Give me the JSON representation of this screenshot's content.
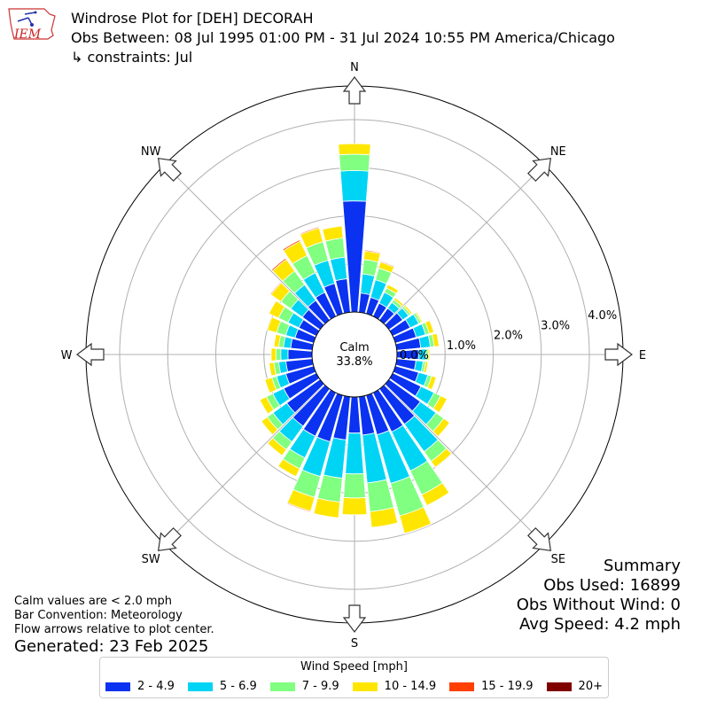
{
  "header": {
    "title": "Windrose Plot for [DEH] DECORAH",
    "subtitle": "Obs Between: 08 Jul 1995 01:00 PM - 31 Jul 2024 10:55 PM America/Chicago",
    "constraints": "↳ constraints: Jul"
  },
  "logo": {
    "text": "IEM"
  },
  "notes": {
    "calm": "Calm values are < 2.0 mph",
    "convention": "Bar Convention: Meteorology",
    "flow": "Flow arrows relative to plot center.",
    "generated": "Generated: 23 Feb 2025"
  },
  "summary": {
    "title": "Summary",
    "obs_used": "Obs Used: 16899",
    "obs_without_wind": "Obs Without Wind: 0",
    "avg_speed": "Avg Speed: 4.2 mph"
  },
  "legend": {
    "title": "Wind Speed [mph]",
    "bins": [
      {
        "label": "2 - 4.9",
        "color": "#0a32f0"
      },
      {
        "label": "5 - 6.9",
        "color": "#00d4f5"
      },
      {
        "label": "7 - 9.9",
        "color": "#80ff80"
      },
      {
        "label": "10 - 14.9",
        "color": "#ffe600"
      },
      {
        "label": "15 - 19.9",
        "color": "#ff4000"
      },
      {
        "label": "20+",
        "color": "#800000"
      }
    ]
  },
  "chart_data": {
    "type": "windrose",
    "calm_label": "Calm",
    "calm_value": "33.8%",
    "calm_percent": 33.8,
    "rlim": [
      0,
      4.7
    ],
    "radial_ticks": [
      {
        "value": 0,
        "label": "0.0%"
      },
      {
        "value": 1,
        "label": "1.0%"
      },
      {
        "value": 2,
        "label": "2.0%"
      },
      {
        "value": 3,
        "label": "3.0%"
      },
      {
        "value": 4,
        "label": "4.0%"
      }
    ],
    "compass": [
      {
        "label": "N",
        "deg": 0
      },
      {
        "label": "NE",
        "deg": 45
      },
      {
        "label": "E",
        "deg": 90
      },
      {
        "label": "SE",
        "deg": 135
      },
      {
        "label": "S",
        "deg": 180
      },
      {
        "label": "SW",
        "deg": 225
      },
      {
        "label": "W",
        "deg": 270
      },
      {
        "label": "NW",
        "deg": 315
      }
    ],
    "directions_deg": [
      0,
      10,
      20,
      30,
      40,
      50,
      60,
      70,
      80,
      90,
      100,
      110,
      120,
      130,
      140,
      150,
      160,
      170,
      180,
      190,
      200,
      210,
      220,
      230,
      240,
      250,
      260,
      270,
      280,
      290,
      300,
      310,
      320,
      330,
      340,
      350
    ],
    "series": [
      {
        "name": "2 - 4.9",
        "values": [
          2.31,
          0.4,
          0.35,
          0.3,
          0.3,
          0.35,
          0.4,
          0.45,
          0.5,
          0.45,
          0.4,
          0.5,
          0.65,
          0.8,
          0.9,
          0.9,
          0.85,
          0.8,
          0.75,
          0.9,
          1.0,
          1.0,
          0.95,
          0.85,
          0.75,
          0.6,
          0.55,
          0.5,
          0.45,
          0.4,
          0.4,
          0.45,
          0.5,
          0.55,
          0.65,
          0.7
        ]
      },
      {
        "name": "5 - 6.9",
        "values": [
          0.63,
          0.4,
          0.38,
          0.25,
          0.15,
          0.15,
          0.2,
          0.2,
          0.2,
          0.15,
          0.15,
          0.2,
          0.3,
          0.4,
          0.7,
          0.9,
          1.05,
          1.0,
          0.85,
          0.8,
          0.75,
          0.5,
          0.4,
          0.35,
          0.25,
          0.2,
          0.15,
          0.15,
          0.15,
          0.2,
          0.25,
          0.3,
          0.4,
          0.45,
          0.5,
          0.45
        ]
      },
      {
        "name": "7 - 9.9",
        "values": [
          0.34,
          0.3,
          0.25,
          0.1,
          0.07,
          0.05,
          0.05,
          0.08,
          0.08,
          0.05,
          0.05,
          0.08,
          0.15,
          0.2,
          0.25,
          0.55,
          0.7,
          0.6,
          0.5,
          0.5,
          0.45,
          0.25,
          0.2,
          0.15,
          0.15,
          0.1,
          0.1,
          0.1,
          0.1,
          0.2,
          0.22,
          0.25,
          0.35,
          0.4,
          0.4,
          0.4
        ]
      },
      {
        "name": "10 - 14.9",
        "values": [
          0.22,
          0.18,
          0.13,
          0.08,
          0.05,
          0.04,
          0.03,
          0.1,
          0.1,
          0.03,
          0.05,
          0.1,
          0.15,
          0.15,
          0.15,
          0.25,
          0.38,
          0.33,
          0.35,
          0.33,
          0.3,
          0.18,
          0.15,
          0.15,
          0.15,
          0.15,
          0.1,
          0.1,
          0.1,
          0.2,
          0.22,
          0.25,
          0.3,
          0.33,
          0.3,
          0.25
        ]
      },
      {
        "name": "15 - 19.9",
        "values": [
          0.0,
          0.02,
          0.02,
          0.0,
          0.0,
          0.0,
          0.0,
          0.0,
          0.0,
          0.0,
          0.0,
          0.0,
          0.0,
          0.0,
          0.0,
          0.01,
          0.01,
          0.01,
          0.0,
          0.0,
          0.02,
          0.0,
          0.0,
          0.0,
          0.0,
          0.0,
          0.0,
          0.0,
          0.0,
          0.0,
          0.0,
          0.02,
          0.03,
          0.03,
          0.02,
          0.0
        ]
      },
      {
        "name": "20+",
        "values": [
          0,
          0,
          0,
          0,
          0,
          0,
          0,
          0,
          0,
          0,
          0,
          0,
          0,
          0,
          0,
          0,
          0,
          0,
          0,
          0,
          0,
          0,
          0,
          0,
          0,
          0,
          0,
          0,
          0,
          0,
          0,
          0,
          0,
          0,
          0,
          0
        ]
      }
    ]
  }
}
